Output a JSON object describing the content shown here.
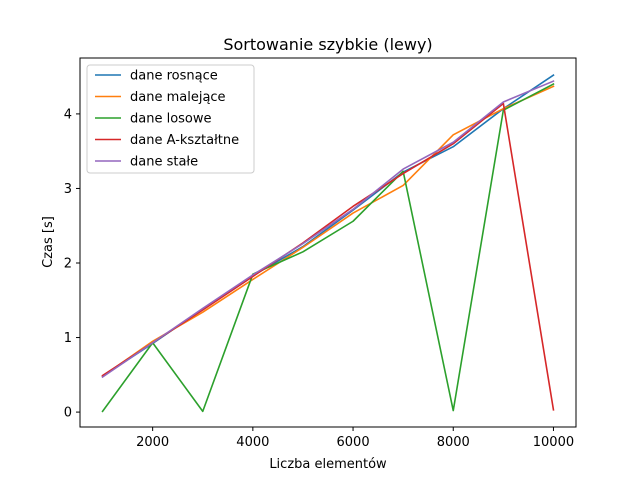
{
  "chart_data": {
    "type": "line",
    "title": "Sortowanie szybkie (lewy)",
    "xlabel": "Liczba elementów",
    "ylabel": "Czas [s]",
    "x": [
      1000,
      2000,
      3000,
      4000,
      5000,
      6000,
      7000,
      8000,
      9000,
      10000
    ],
    "xlim": [
      550,
      10450
    ],
    "ylim": [
      -0.2,
      4.75
    ],
    "xticks": [
      2000,
      4000,
      6000,
      8000,
      10000
    ],
    "yticks": [
      0,
      1,
      2,
      3,
      4
    ],
    "grid": false,
    "legend_position": "top-left",
    "series": [
      {
        "name": "dane rosnące",
        "color": "#1f77b4",
        "values": [
          0.48,
          0.92,
          1.38,
          1.83,
          2.22,
          2.71,
          3.22,
          3.56,
          4.07,
          4.52
        ]
      },
      {
        "name": "dane malejące",
        "color": "#ff7f0e",
        "values": [
          0.48,
          0.95,
          1.34,
          1.78,
          2.21,
          2.67,
          3.04,
          3.72,
          4.07,
          4.37
        ]
      },
      {
        "name": "dane losowe",
        "color": "#2ca02c",
        "values": [
          0.01,
          0.93,
          0.01,
          1.85,
          2.15,
          2.56,
          3.23,
          0.02,
          4.05,
          4.4
        ]
      },
      {
        "name": "dane A-kształtne",
        "color": "#d62728",
        "values": [
          0.49,
          0.93,
          1.37,
          1.82,
          2.27,
          2.76,
          3.2,
          3.6,
          4.14,
          0.03
        ]
      },
      {
        "name": "dane stałe",
        "color": "#9467bd",
        "values": [
          0.47,
          0.93,
          1.39,
          1.84,
          2.26,
          2.72,
          3.26,
          3.62,
          4.16,
          4.44
        ]
      }
    ]
  }
}
